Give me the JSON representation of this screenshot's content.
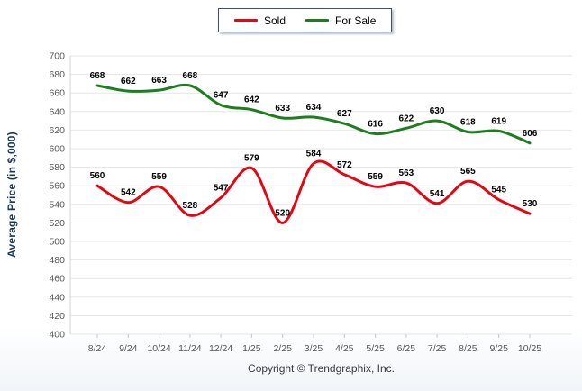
{
  "y_axis_title": "Average Price (in $,000)",
  "footer": {
    "copyright": "Copyright © Trendgraphix, Inc."
  },
  "colors": {
    "sold": "#e30613",
    "for_sale": "#1e7d1e",
    "grid_line": "#e4e6e9",
    "axis_line": "#d3d6da",
    "tick_mark": "#c3c7cc",
    "tick_label": "#555555",
    "data_label": "#000000",
    "axis_title": "#17375e",
    "legend_border": "#3d4f6b"
  },
  "chart_data": {
    "type": "line",
    "title": "",
    "xlabel": "",
    "ylabel": "Average Price (in $,000)",
    "categories": [
      "8/24",
      "9/24",
      "10/24",
      "11/24",
      "12/24",
      "1/25",
      "2/25",
      "3/25",
      "4/25",
      "5/25",
      "6/25",
      "7/25",
      "8/25",
      "9/25",
      "10/25"
    ],
    "series": [
      {
        "name": "Sold",
        "color": "#e30613",
        "values": [
          560,
          542,
          559,
          528,
          547,
          579,
          520,
          584,
          572,
          559,
          563,
          541,
          565,
          545,
          530
        ]
      },
      {
        "name": "For Sale",
        "color": "#1e7d1e",
        "values": [
          668,
          662,
          663,
          668,
          647,
          642,
          633,
          634,
          627,
          616,
          622,
          630,
          618,
          619,
          606
        ]
      }
    ],
    "ylim": [
      400,
      700
    ],
    "ytick_step": 20,
    "grid": true,
    "data_labels": true,
    "legend_position": "top-center"
  }
}
